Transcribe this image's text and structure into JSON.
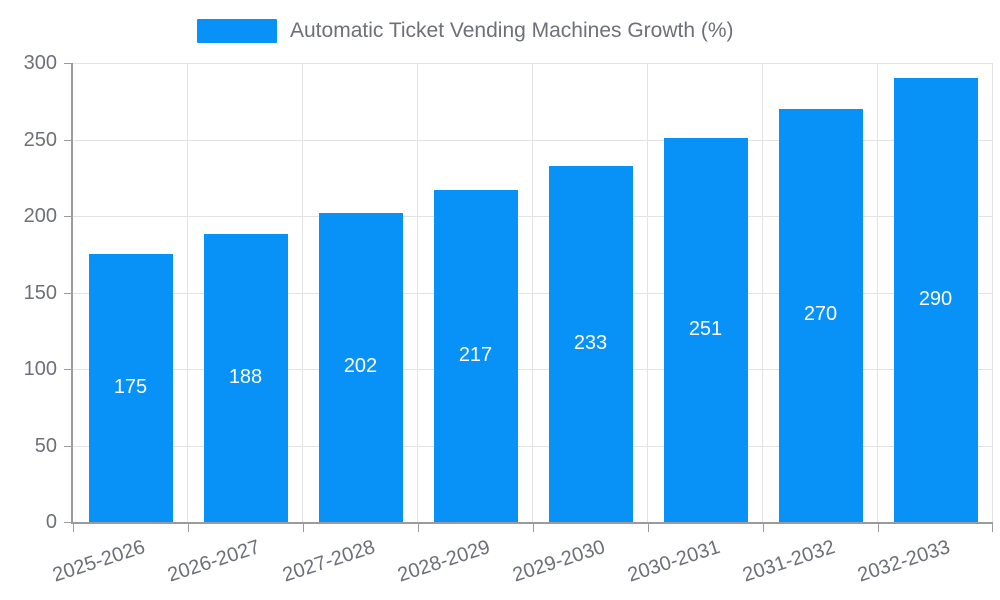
{
  "chart_data": {
    "type": "bar",
    "title": "Automatic Ticket Vending Machines Growth (%)",
    "categories": [
      "2025-2026",
      "2026-2027",
      "2027-2028",
      "2028-2029",
      "2029-2030",
      "2030-2031",
      "2031-2032",
      "2032-2033"
    ],
    "values": [
      175,
      188,
      202,
      217,
      233,
      251,
      270,
      290
    ],
    "xlabel": "",
    "ylabel": "",
    "ylim": [
      0,
      300
    ],
    "y_ticks": [
      0,
      50,
      100,
      150,
      200,
      250,
      300
    ],
    "grid": true,
    "legend_position": "top-center",
    "bar_label_position": "inside-center",
    "x_label_rotation_deg": -18,
    "colors": {
      "bar": "#0892f8",
      "bar_label": "#ffffff",
      "axis_text": "#6e7079",
      "grid_line": "#e3e3e3",
      "axis_line": "#9b9b9b",
      "background": "#ffffff"
    }
  }
}
